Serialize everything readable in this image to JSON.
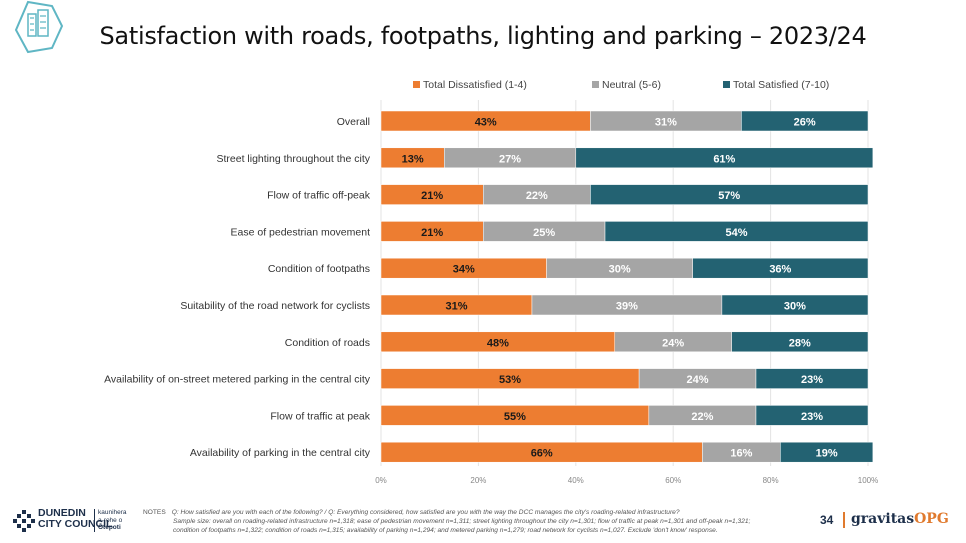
{
  "page": {
    "title": "Satisfaction with roads, footpaths, lighting and parking – 2023/24",
    "page_number": "34",
    "notes_label": "NOTES",
    "notes_line1": "Q: How satisfied are you with each of the following?  /  Q: Everything considered, how satisfied are you with the way the DCC manages the city's roading-related infrastructure?",
    "notes_line2": "Sample size: overall on roading-related infrastructure n=1,318; ease of pedestrian movement n=1,311; street lighting throughout the city n=1,301; flow of traffic at peak n=1,301 and off-peak n=1,321;",
    "notes_line3": "condition of footpaths n=1,322; condition of roads n=1,315; availability of parking n=1,294; and metered parking n=1,279; road network for cyclists n=1,027. Exclude 'don't know' response.",
    "council_name_line1": "DUNEDIN",
    "council_name_line2": "CITY COUNCIL",
    "council_maori_line1": "kaunihera",
    "council_maori_line2": "a-rohe o",
    "council_maori_line3": "Ōtepoti",
    "brand_main": "gravitas",
    "brand_suffix": "OPG"
  },
  "colors": {
    "dissatisfied": "#ed7d31",
    "neutral": "#a5a5a5",
    "satisfied": "#236272",
    "brand_orange": "#e07a2e",
    "brand_navy": "#1d2f4a",
    "logo_teal": "#5fb6c4"
  },
  "chart_data": {
    "type": "bar",
    "orientation": "horizontal",
    "stacked": true,
    "categories": [
      "Overall",
      "Street lighting throughout the city",
      "Flow of traffic off-peak",
      "Ease of pedestrian movement",
      "Condition of footpaths",
      "Suitability of the road network for cyclists",
      "Condition of roads",
      "Availability of on-street metered parking in the central city",
      "Flow of traffic at peak",
      "Availability of parking in the central city"
    ],
    "series": [
      {
        "name": "Total Dissatisfied (1-4)",
        "values": [
          43,
          13,
          21,
          21,
          34,
          31,
          48,
          53,
          55,
          66
        ]
      },
      {
        "name": "Neutral (5-6)",
        "values": [
          31,
          27,
          22,
          25,
          30,
          39,
          24,
          24,
          22,
          16
        ]
      },
      {
        "name": "Total Satisfied (7-10)",
        "values": [
          26,
          61,
          57,
          54,
          36,
          30,
          28,
          23,
          23,
          19
        ]
      }
    ],
    "xlim": [
      0,
      100
    ],
    "x_ticks": [
      "0%",
      "20%",
      "40%",
      "60%",
      "80%",
      "100%"
    ],
    "value_suffix": "%",
    "legend_position": "top",
    "grid": "vertical"
  }
}
